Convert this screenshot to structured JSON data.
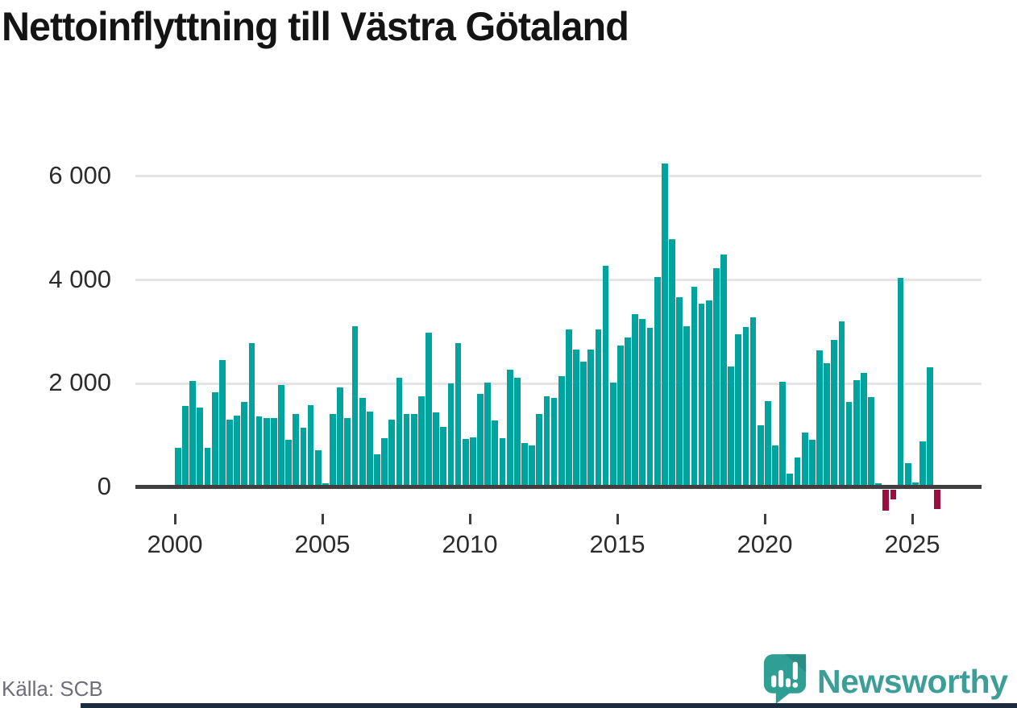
{
  "title": "Nettoinflyttning till Västra Götaland",
  "source": "Källa: SCB",
  "branding": {
    "name": "Newsworthy"
  },
  "colors": {
    "positive_bar": "#00a39d",
    "negative_bar": "#9b0f3f",
    "axis_line": "#3f3f3f",
    "gridline": "#e4e4e4",
    "tick_text": "#2c2c2c",
    "title_text": "#141414",
    "source_text": "#6e6e79",
    "brand_teal": "#3d9e98",
    "bottom_strip": "#1b2b40"
  },
  "chart_data": {
    "type": "bar",
    "frequency": "quarterly",
    "title": "Nettoinflyttning till Västra Götaland",
    "xlabel": "",
    "ylabel": "",
    "grid": "horizontal",
    "ylim": [
      -500,
      6700
    ],
    "yticks": [
      {
        "value": 0,
        "label": "0"
      },
      {
        "value": 2000,
        "label": "2 000"
      },
      {
        "value": 4000,
        "label": "4 000"
      },
      {
        "value": 6000,
        "label": "6 000"
      }
    ],
    "xticks": [
      {
        "value": 2000,
        "label": "2000"
      },
      {
        "value": 2005,
        "label": "2005"
      },
      {
        "value": 2010,
        "label": "2010"
      },
      {
        "value": 2015,
        "label": "2015"
      },
      {
        "value": 2020,
        "label": "2020"
      },
      {
        "value": 2025,
        "label": "2025"
      }
    ],
    "years": [
      {
        "year": 2000,
        "values": [
          760,
          1570,
          2050,
          1540
        ]
      },
      {
        "year": 2001,
        "values": [
          760,
          1830,
          2450,
          1310
        ]
      },
      {
        "year": 2002,
        "values": [
          1390,
          1650,
          2780,
          1370
        ]
      },
      {
        "year": 2003,
        "values": [
          1340,
          1340,
          1970,
          920
        ]
      },
      {
        "year": 2004,
        "values": [
          1420,
          1150,
          1590,
          710
        ]
      },
      {
        "year": 2005,
        "values": [
          80,
          1420,
          1920,
          1340
        ]
      },
      {
        "year": 2006,
        "values": [
          3110,
          1730,
          1460,
          640
        ]
      },
      {
        "year": 2007,
        "values": [
          950,
          1300,
          2120,
          1420
        ]
      },
      {
        "year": 2008,
        "values": [
          1420,
          1750,
          2980,
          1440
        ]
      },
      {
        "year": 2009,
        "values": [
          1160,
          2010,
          2780,
          930
        ]
      },
      {
        "year": 2010,
        "values": [
          960,
          1800,
          2020,
          1290
        ]
      },
      {
        "year": 2011,
        "values": [
          950,
          2270,
          2110,
          850
        ]
      },
      {
        "year": 2012,
        "values": [
          810,
          1420,
          1760,
          1720
        ]
      },
      {
        "year": 2013,
        "values": [
          2150,
          3050,
          2660,
          2420
        ]
      },
      {
        "year": 2014,
        "values": [
          2660,
          3050,
          4280,
          2020
        ]
      },
      {
        "year": 2015,
        "values": [
          2730,
          2890,
          3340,
          3250
        ]
      },
      {
        "year": 2016,
        "values": [
          3080,
          4060,
          6250,
          4790
        ]
      },
      {
        "year": 2017,
        "values": [
          3660,
          3110,
          3870,
          3550
        ]
      },
      {
        "year": 2018,
        "values": [
          3600,
          4220,
          4490,
          2330
        ]
      },
      {
        "year": 2019,
        "values": [
          2950,
          3100,
          3280,
          1200
        ]
      },
      {
        "year": 2020,
        "values": [
          1660,
          810,
          2040,
          270
        ]
      },
      {
        "year": 2021,
        "values": [
          570,
          1060,
          910,
          2640
        ]
      },
      {
        "year": 2022,
        "values": [
          2400,
          2840,
          3200,
          1640
        ]
      },
      {
        "year": 2023,
        "values": [
          2070,
          2200,
          1740,
          70
        ]
      },
      {
        "year": 2024,
        "values": [
          -410,
          -180,
          4040,
          460
        ]
      },
      {
        "year": 2025,
        "values": [
          100,
          880,
          2310,
          -380
        ]
      }
    ],
    "bar_colors": {
      "positive": "#00a39d",
      "negative": "#9b0f3f"
    },
    "legend": null
  }
}
